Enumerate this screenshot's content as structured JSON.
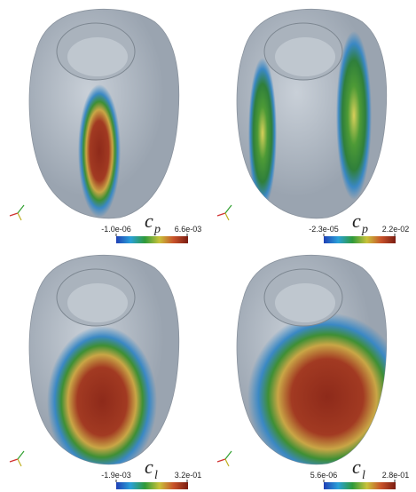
{
  "panels": [
    {
      "variable": {
        "symbol": "c",
        "subscript": "p"
      },
      "min": "-1.0e-06",
      "max": "6.6e-03"
    },
    {
      "variable": {
        "symbol": "c",
        "subscript": "p"
      },
      "min": "-2.3e-05",
      "max": "2.2e-02"
    },
    {
      "variable": {
        "symbol": "c",
        "subscript": "l"
      },
      "min": "-1.9e-03",
      "max": "3.2e-01"
    },
    {
      "variable": {
        "symbol": "c",
        "subscript": "l"
      },
      "min": "5.6e-06",
      "max": "2.8e-01"
    }
  ]
}
